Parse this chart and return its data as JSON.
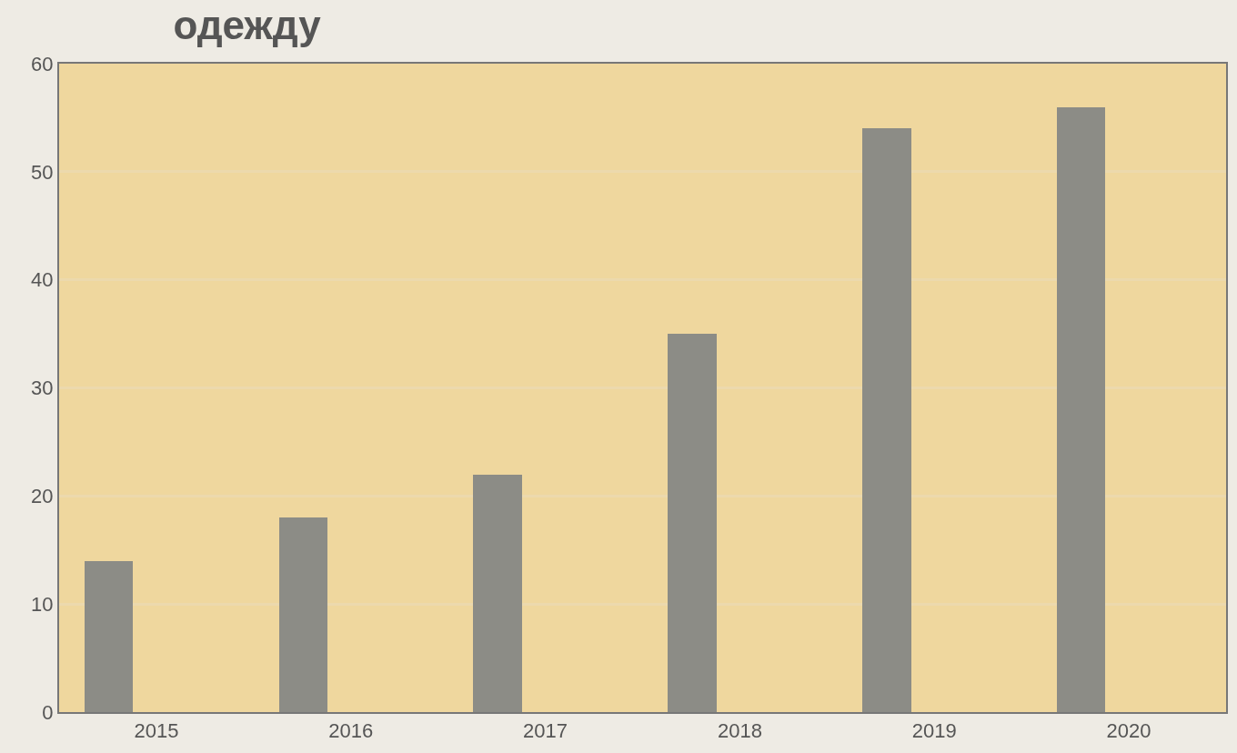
{
  "chart_data": {
    "type": "bar",
    "title": "одежду",
    "categories": [
      "2015",
      "2016",
      "2017",
      "2018",
      "2019",
      "2020"
    ],
    "values": [
      14,
      18,
      22,
      35,
      54,
      56
    ],
    "color": "#8c8c86",
    "ylim": [
      0,
      60
    ],
    "yticks": [
      0,
      10,
      20,
      30,
      40,
      50,
      60
    ],
    "grid": "y"
  }
}
